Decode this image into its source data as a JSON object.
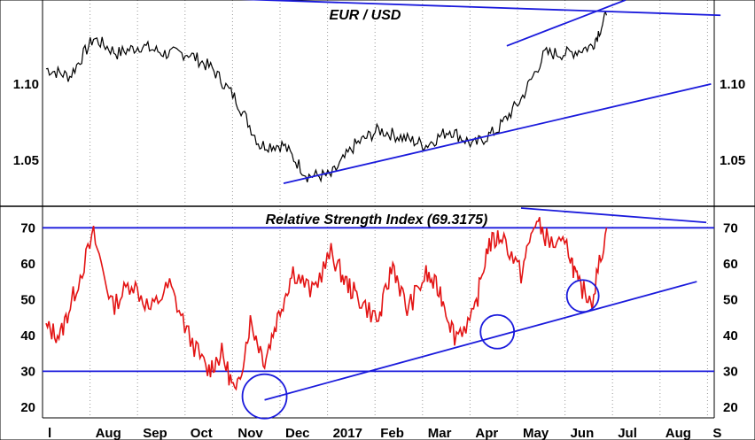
{
  "chart_data": [
    {
      "type": "line",
      "title": "EUR / USD",
      "y_ticks": [
        "1.10",
        "1.05"
      ],
      "y_tick_values": [
        1.1,
        1.05
      ],
      "ylim": [
        1.02,
        1.155
      ],
      "x_months": [
        "l",
        "Aug",
        "Sep",
        "Oct",
        "Nov",
        "Dec",
        "2017",
        "Feb",
        "Mar",
        "Apr",
        "May",
        "Jun",
        "Jul",
        "Aug",
        "S"
      ],
      "series": [
        {
          "x_index": [
            0,
            0.5,
            1,
            1.5,
            2,
            2.5,
            3,
            3.5,
            4,
            4.5,
            5,
            5.5,
            6,
            6.5,
            7,
            7.5,
            8,
            8.5,
            9,
            9.5,
            10,
            10.5,
            11,
            11.5,
            11.8
          ],
          "values": [
            1.11,
            1.105,
            1.13,
            1.12,
            1.125,
            1.12,
            1.12,
            1.11,
            1.09,
            1.06,
            1.06,
            1.04,
            1.04,
            1.06,
            1.07,
            1.065,
            1.06,
            1.07,
            1.06,
            1.07,
            1.09,
            1.12,
            1.12,
            1.125,
            1.145
          ]
        }
      ],
      "trendlines": [
        {
          "from": {
            "x": -0.2,
            "y": 1.16
          },
          "to": {
            "x": 14.2,
            "y": 1.145
          }
        },
        {
          "from": {
            "x": 9.7,
            "y": 1.125
          },
          "to": {
            "x": 12.2,
            "y": 1.155
          }
        },
        {
          "from": {
            "x": 5.0,
            "y": 1.035
          },
          "to": {
            "x": 14.0,
            "y": 1.1
          }
        }
      ],
      "grid": "vertical dotted"
    },
    {
      "type": "line",
      "title": "Relative Strength Index (69.3175)",
      "y_ticks": [
        "70",
        "60",
        "50",
        "40",
        "30",
        "20"
      ],
      "y_tick_values": [
        70,
        60,
        50,
        40,
        30,
        20
      ],
      "ylim": [
        17,
        76
      ],
      "horizontal_lines": [
        70,
        30
      ],
      "x_months": [
        "l",
        "Aug",
        "Sep",
        "Oct",
        "Nov",
        "Dec",
        "2017",
        "Feb",
        "Mar",
        "Apr",
        "May",
        "Jun",
        "Jul",
        "Aug",
        "S"
      ],
      "series": [
        {
          "x_index": [
            0,
            0.3,
            0.6,
            1,
            1.4,
            1.8,
            2.2,
            2.6,
            3,
            3.4,
            3.7,
            4,
            4.3,
            4.6,
            4.9,
            5.2,
            5.6,
            6,
            6.3,
            6.6,
            7,
            7.3,
            7.6,
            8,
            8.3,
            8.6,
            9,
            9.3,
            9.6,
            10,
            10.3,
            10.6,
            11,
            11.2,
            11.5,
            11.8
          ],
          "values": [
            42,
            40,
            52,
            68,
            48,
            55,
            47,
            54,
            40,
            30,
            35,
            23,
            44,
            33,
            46,
            58,
            52,
            63,
            55,
            50,
            44,
            60,
            47,
            57,
            52,
            40,
            45,
            65,
            68,
            57,
            72,
            66,
            64,
            54,
            50,
            70
          ]
        }
      ],
      "trendlines": [
        {
          "from": {
            "x": 4.6,
            "y": 22
          },
          "to": {
            "x": 13.7,
            "y": 55
          }
        },
        {
          "from": {
            "x": 10.0,
            "y": 75.5
          },
          "to": {
            "x": 13.9,
            "y": 71.5
          }
        }
      ],
      "circled_points": [
        {
          "x": 4.6,
          "y": 23
        },
        {
          "x": 9.5,
          "y": 41
        },
        {
          "x": 11.3,
          "y": 51
        }
      ],
      "grid": "vertical dotted"
    }
  ]
}
